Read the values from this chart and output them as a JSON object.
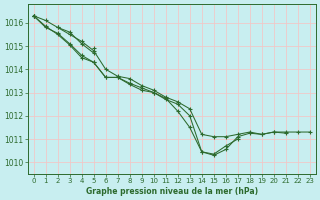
{
  "bg_color": "#c8eef0",
  "grid_color": "#f0c8c8",
  "line_color": "#2d6a2d",
  "xlabel": "Graphe pression niveau de la mer (hPa)",
  "ylim": [
    1009.5,
    1016.8
  ],
  "xlim": [
    -0.5,
    23.5
  ],
  "yticks": [
    1010,
    1011,
    1012,
    1013,
    1014,
    1015,
    1016
  ],
  "xticks": [
    0,
    1,
    2,
    3,
    4,
    5,
    6,
    7,
    8,
    9,
    10,
    11,
    12,
    13,
    14,
    15,
    16,
    17,
    18,
    19,
    20,
    21,
    22,
    23
  ],
  "lines": [
    [
      1016.3,
      null,
      null,
      null,
      null,
      1014.9,
      null,
      null,
      null,
      null,
      null,
      null,
      null,
      null,
      null,
      null,
      null,
      null,
      null,
      null,
      null,
      null,
      null,
      null
    ],
    [
      1016.3,
      1016.1,
      1015.8,
      1015.5,
      1015.2,
      1014.8,
      1014.0,
      1013.7,
      1013.6,
      1013.3,
      1013.1,
      1012.8,
      1012.6,
      1012.3,
      1011.2,
      1011.1,
      1011.1,
      1011.2,
      1011.3,
      1011.2,
      1011.3,
      1011.3,
      1011.3,
      1011.3
    ],
    [
      1016.3,
      1015.8,
      1015.55,
      1015.1,
      1014.6,
      1014.3,
      1013.65,
      1013.65,
      1013.35,
      1013.1,
      1013.0,
      1012.7,
      1012.5,
      1012.0,
      1010.45,
      1010.3,
      1010.55,
      1011.1,
      1011.25,
      1011.2,
      1011.3,
      1011.25,
      null,
      null
    ],
    [
      1016.3,
      1015.85,
      1015.5,
      1015.05,
      1014.5,
      1014.3,
      1013.65,
      1013.65,
      1013.4,
      1013.2,
      1013.0,
      1012.75,
      1012.2,
      1011.5,
      1010.45,
      1010.35,
      1010.7,
      1011.0,
      null,
      null,
      null,
      null,
      null,
      null
    ],
    [
      1016.3,
      null,
      1015.8,
      1015.6,
      1015.1,
      1014.7,
      null,
      null,
      null,
      null,
      null,
      null,
      null,
      null,
      null,
      null,
      null,
      null,
      null,
      null,
      null,
      null,
      null,
      null
    ]
  ]
}
